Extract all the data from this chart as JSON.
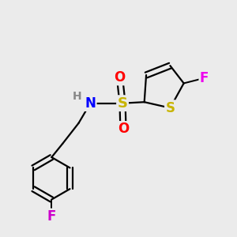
{
  "bg_color": "#ebebeb",
  "bond_color": "#000000",
  "bond_width": 1.6,
  "colors": {
    "S": "#c8b400",
    "O": "#ff0000",
    "N": "#0000ff",
    "F_thiophene": "#ee00ee",
    "F_phenyl": "#cc00cc",
    "H": "#888888",
    "C": "#000000"
  },
  "font_size": 12
}
